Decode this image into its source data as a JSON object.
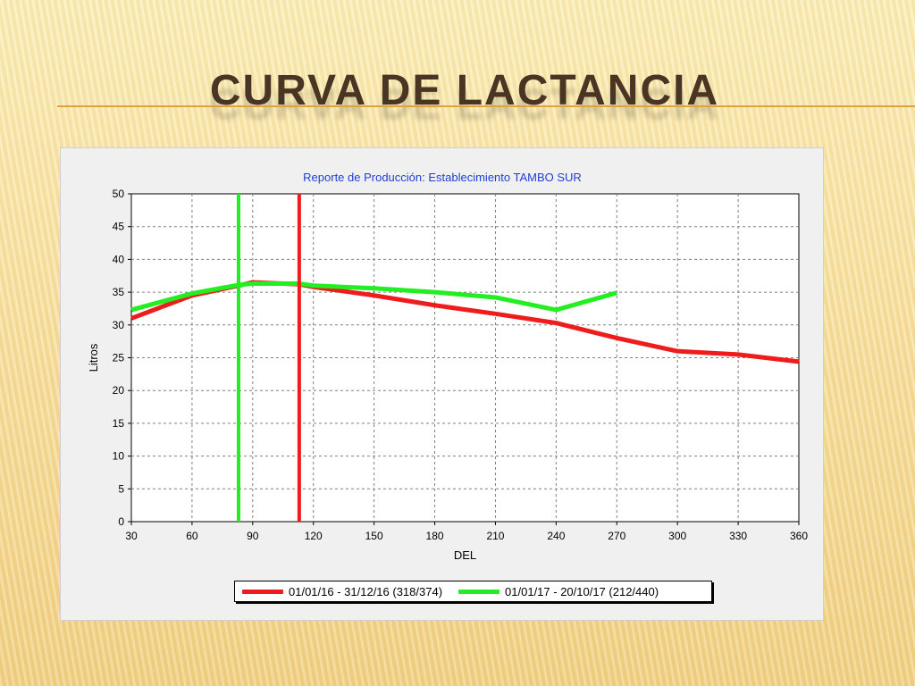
{
  "slide": {
    "title": "CURVA DE LACTANCIA"
  },
  "chart_data": {
    "type": "line",
    "title": "Reporte de Producción: Establecimiento TAMBO SUR",
    "xlabel": "DEL",
    "ylabel": "Litros",
    "xlim": [
      30,
      360
    ],
    "ylim": [
      0,
      50
    ],
    "xticks": [
      30,
      60,
      90,
      120,
      150,
      180,
      210,
      240,
      270,
      300,
      330,
      360
    ],
    "yticks": [
      0,
      5,
      10,
      15,
      20,
      25,
      30,
      35,
      40,
      45,
      50
    ],
    "grid": true,
    "legend_position": "bottom",
    "series": [
      {
        "name": "01/01/16 - 31/12/16 (318/374)",
        "color": "#ee1c1c",
        "x": [
          30,
          60,
          83,
          90,
          113,
          120,
          150,
          180,
          210,
          240,
          270,
          300,
          330,
          360
        ],
        "y": [
          31,
          34.5,
          36,
          36.5,
          36.2,
          35.8,
          34.5,
          33,
          31.7,
          30.3,
          28,
          26,
          25.5,
          24.4
        ]
      },
      {
        "name": "01/01/17 - 20/10/17 (212/440)",
        "color": "#22ee22",
        "x": [
          30,
          60,
          83,
          90,
          113,
          120,
          150,
          180,
          210,
          240,
          270
        ],
        "y": [
          32.3,
          34.8,
          36.1,
          36.3,
          36.3,
          36,
          35.6,
          35,
          34.2,
          32.3,
          34.9
        ]
      }
    ],
    "vertical_markers": [
      {
        "x": 83,
        "color": "#22ee22"
      },
      {
        "x": 113,
        "color": "#ee1c1c"
      }
    ]
  }
}
